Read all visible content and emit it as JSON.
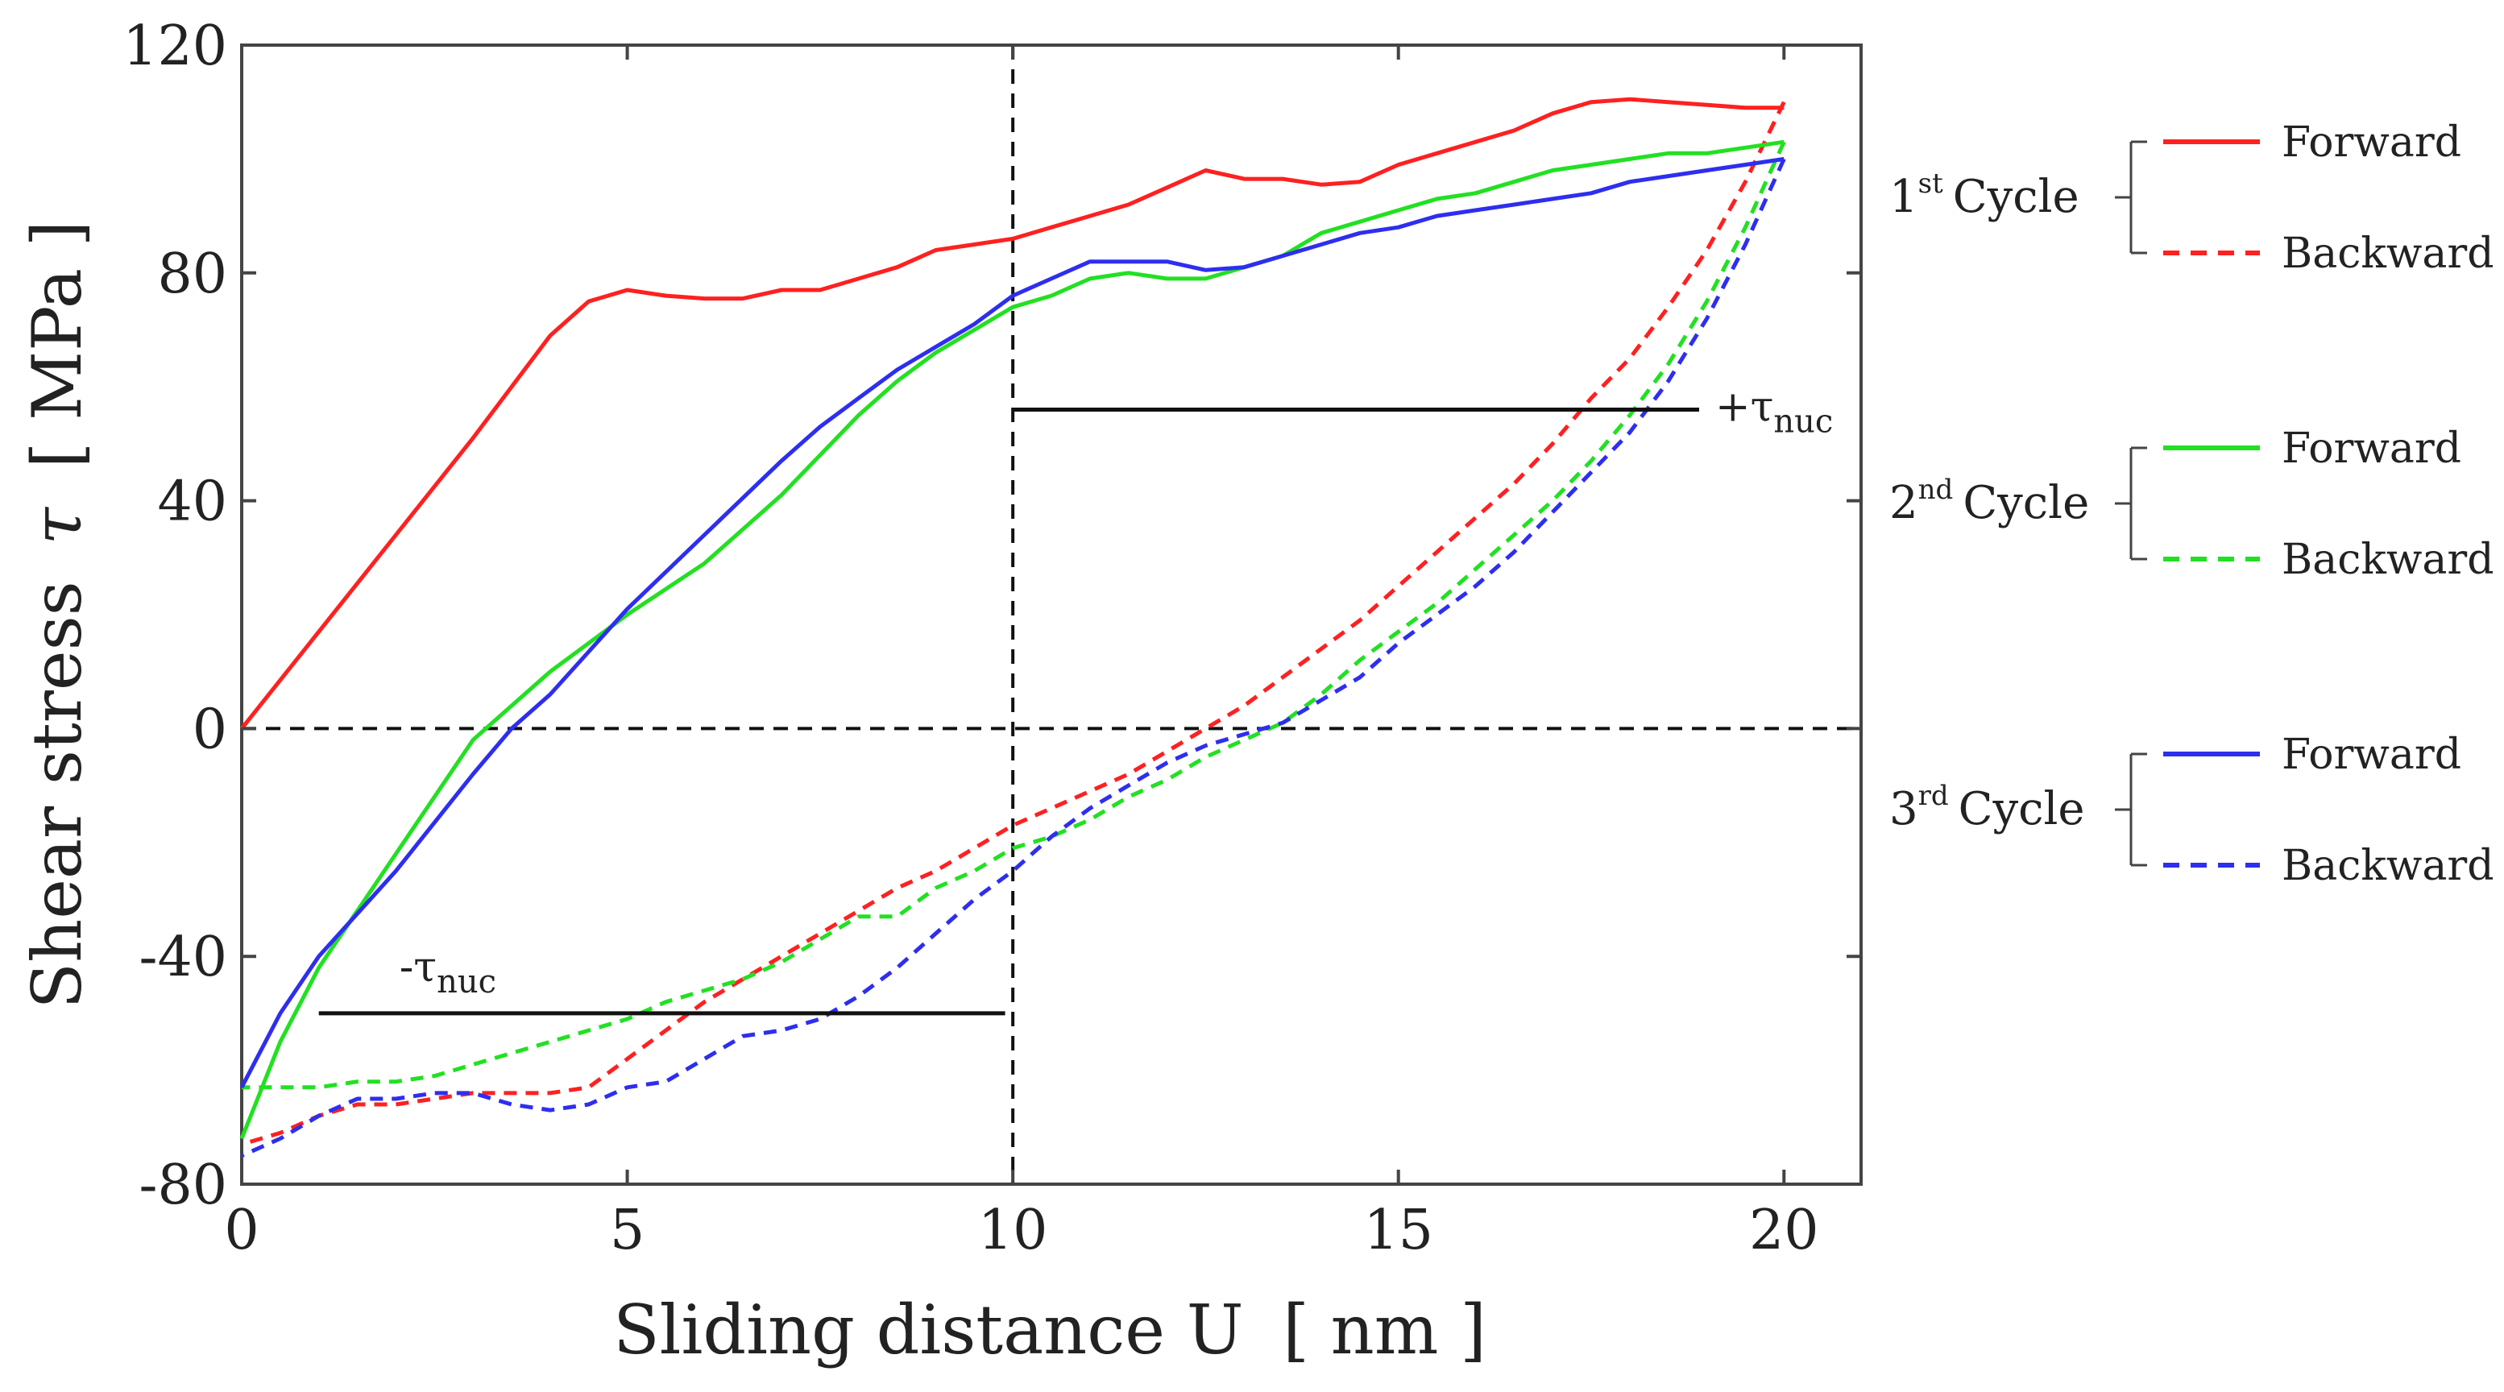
{
  "chart_data": {
    "type": "line",
    "xlabel_main": "Sliding distance U",
    "xlabel_unit": "[ nm ]",
    "ylabel_main": "Shear stress",
    "ylabel_symbol": "τ",
    "ylabel_unit": "[ MPa ]",
    "xlim": [
      0,
      21
    ],
    "ylim": [
      -80,
      120
    ],
    "xticks": [
      0,
      5,
      10,
      15,
      20
    ],
    "yticks": [
      -80,
      -40,
      0,
      40,
      80,
      120
    ],
    "x_tick_labels": [
      "0",
      "5",
      "10",
      "15",
      "20"
    ],
    "y_tick_labels": [
      "-80",
      "-40",
      "0",
      "40",
      "80",
      "120"
    ],
    "reference_lines": [
      {
        "name": "zero-stress-line",
        "axis": "y",
        "value": 0
      },
      {
        "name": "reversal-line",
        "axis": "x",
        "value": 10
      }
    ],
    "annotations": [
      {
        "name": "plus-tau-nuc",
        "sign": "+",
        "symbol": "τ",
        "sub": "nuc",
        "y": 56,
        "x_start": 10,
        "x_end": 18.9
      },
      {
        "name": "minus-tau-nuc",
        "sign": "-",
        "symbol": "τ",
        "sub": "nuc",
        "y": -50,
        "x_start": 1,
        "x_end": 9.9
      }
    ],
    "series": [
      {
        "name": "1st Cycle Forward",
        "color": "#ff2020",
        "dash": false,
        "x": [
          0,
          1,
          2,
          3,
          3.5,
          4,
          4.5,
          5,
          5.5,
          6,
          6.5,
          7,
          7.5,
          8,
          8.5,
          9,
          9.5,
          10,
          10.5,
          11,
          11.5,
          12,
          12.5,
          13,
          13.5,
          14,
          14.5,
          15,
          15.5,
          16,
          16.5,
          17,
          17.5,
          18,
          18.5,
          19,
          19.5,
          20
        ],
        "y": [
          0,
          17,
          34,
          51,
          60,
          69,
          75,
          77,
          76,
          75.5,
          75.5,
          77,
          77,
          79,
          81,
          84,
          85,
          86,
          88,
          90,
          92,
          95,
          98,
          96.5,
          96.5,
          95.5,
          96,
          99,
          101,
          103,
          105,
          108,
          110,
          110.5,
          110,
          109.5,
          109,
          109
        ]
      },
      {
        "name": "1st Cycle Backward",
        "color": "#ff2020",
        "dash": true,
        "x": [
          20,
          19.5,
          19,
          18.5,
          18,
          17.5,
          17,
          16.5,
          16,
          15.5,
          15,
          14.5,
          14,
          13.5,
          13,
          12.5,
          12,
          11.5,
          11,
          10.5,
          10,
          9.5,
          9,
          8.5,
          8,
          7.5,
          7,
          6.5,
          6,
          5.5,
          5,
          4.5,
          4,
          3.5,
          3,
          2.5,
          2,
          1.5,
          1,
          0.5,
          0
        ],
        "y": [
          110,
          96,
          84,
          74,
          65,
          58,
          50,
          43,
          37,
          31,
          25,
          19,
          14,
          9,
          4,
          0,
          -4,
          -8,
          -11,
          -14,
          -17,
          -21,
          -25,
          -28,
          -32,
          -36,
          -40,
          -44,
          -48,
          -53,
          -58,
          -63,
          -64,
          -64,
          -64,
          -65,
          -66,
          -66,
          -68,
          -71,
          -73
        ]
      },
      {
        "name": "2nd Cycle Forward",
        "color": "#22e022",
        "dash": false,
        "x": [
          0,
          0.5,
          1,
          2,
          3,
          4,
          5,
          6,
          7,
          7.5,
          8,
          8.5,
          9,
          9.5,
          10,
          10.5,
          11,
          11.5,
          12,
          12.5,
          13,
          13.5,
          14,
          14.5,
          15,
          15.5,
          16,
          16.5,
          17,
          17.5,
          18,
          18.5,
          19,
          19.5,
          20
        ],
        "y": [
          -72,
          -55,
          -42,
          -22,
          -2,
          10,
          20,
          29,
          41,
          48,
          55,
          61,
          66,
          70,
          74,
          76,
          79,
          80,
          79,
          79,
          81,
          83,
          87,
          89,
          91,
          93,
          94,
          96,
          98,
          99,
          100,
          101,
          101,
          102,
          103
        ]
      },
      {
        "name": "2nd Cycle Backward",
        "color": "#22e022",
        "dash": true,
        "x": [
          20,
          19.5,
          19,
          18.5,
          18,
          17.5,
          17,
          16.5,
          16,
          15.5,
          15,
          14.5,
          14,
          13.5,
          13,
          12.5,
          12,
          11.5,
          11,
          10.5,
          10,
          9.5,
          9,
          8.5,
          8,
          7.5,
          7,
          6.5,
          6,
          5.5,
          5,
          4.5,
          4,
          3.5,
          3,
          2.5,
          2,
          1.5,
          1,
          0.5,
          0
        ],
        "y": [
          103,
          88,
          75,
          64,
          55,
          47,
          40,
          34,
          28,
          22,
          17,
          12,
          6,
          1,
          -2,
          -5,
          -9,
          -12,
          -16,
          -19,
          -21,
          -25,
          -28,
          -33,
          -33,
          -37,
          -41,
          -44,
          -46,
          -48,
          -51,
          -53,
          -55,
          -57,
          -59,
          -61,
          -62,
          -62,
          -63,
          -63,
          -63
        ]
      },
      {
        "name": "3rd Cycle Forward",
        "color": "#2e2ef0",
        "dash": false,
        "x": [
          0,
          0.5,
          1,
          2,
          3,
          3.5,
          4,
          5,
          6,
          7,
          7.5,
          8,
          8.5,
          9,
          9.5,
          10,
          10.5,
          11,
          11.5,
          12,
          12.5,
          13,
          13.5,
          14,
          14.5,
          15,
          15.5,
          16,
          16.5,
          17,
          17.5,
          18,
          18.5,
          19,
          19.5,
          20
        ],
        "y": [
          -63,
          -50,
          -40,
          -25,
          -8,
          0,
          6,
          21,
          34,
          47,
          53,
          58,
          63,
          67,
          71,
          76,
          79,
          82,
          82,
          82,
          80.5,
          81,
          83,
          85,
          87,
          88,
          90,
          91,
          92,
          93,
          94,
          96,
          97,
          98,
          99,
          100
        ]
      },
      {
        "name": "3rd Cycle Backward",
        "color": "#2e2ef0",
        "dash": true,
        "x": [
          20,
          19.5,
          19,
          18.5,
          18,
          17.5,
          17,
          16.5,
          16,
          15.5,
          15,
          14.5,
          14,
          13.5,
          13,
          12.5,
          12,
          11.5,
          11,
          10.5,
          10,
          9.5,
          9,
          8.5,
          8,
          7.5,
          7,
          6.5,
          6,
          5.5,
          5,
          4.5,
          4,
          3.5,
          3,
          2.5,
          2,
          1.5,
          1,
          0.5,
          0
        ],
        "y": [
          100,
          85,
          72,
          61,
          52,
          45,
          38,
          31,
          25,
          20,
          15,
          9,
          5,
          1,
          -1,
          -3,
          -6,
          -10,
          -14,
          -19,
          -25,
          -30,
          -36,
          -42,
          -47,
          -51,
          -53,
          -54,
          -58,
          -62,
          -63,
          -66,
          -67,
          -66,
          -64,
          -64,
          -65,
          -65,
          -68,
          -72,
          -75
        ]
      }
    ],
    "legend": {
      "position": "right",
      "groups": [
        {
          "cycle_num": "1",
          "cycle_sup": "st",
          "cycle_word": "Cycle",
          "color": "#ff2020",
          "entries": [
            {
              "label": "Forward",
              "dash": false
            },
            {
              "label": "Backward",
              "dash": true
            }
          ]
        },
        {
          "cycle_num": "2",
          "cycle_sup": "nd",
          "cycle_word": "Cycle",
          "color": "#22e022",
          "entries": [
            {
              "label": "Forward",
              "dash": false
            },
            {
              "label": "Backward",
              "dash": true
            }
          ]
        },
        {
          "cycle_num": "3",
          "cycle_sup": "rd",
          "cycle_word": "Cycle",
          "color": "#2e2ef0",
          "entries": [
            {
              "label": "Forward",
              "dash": false
            },
            {
              "label": "Backward",
              "dash": true
            }
          ]
        }
      ]
    }
  }
}
